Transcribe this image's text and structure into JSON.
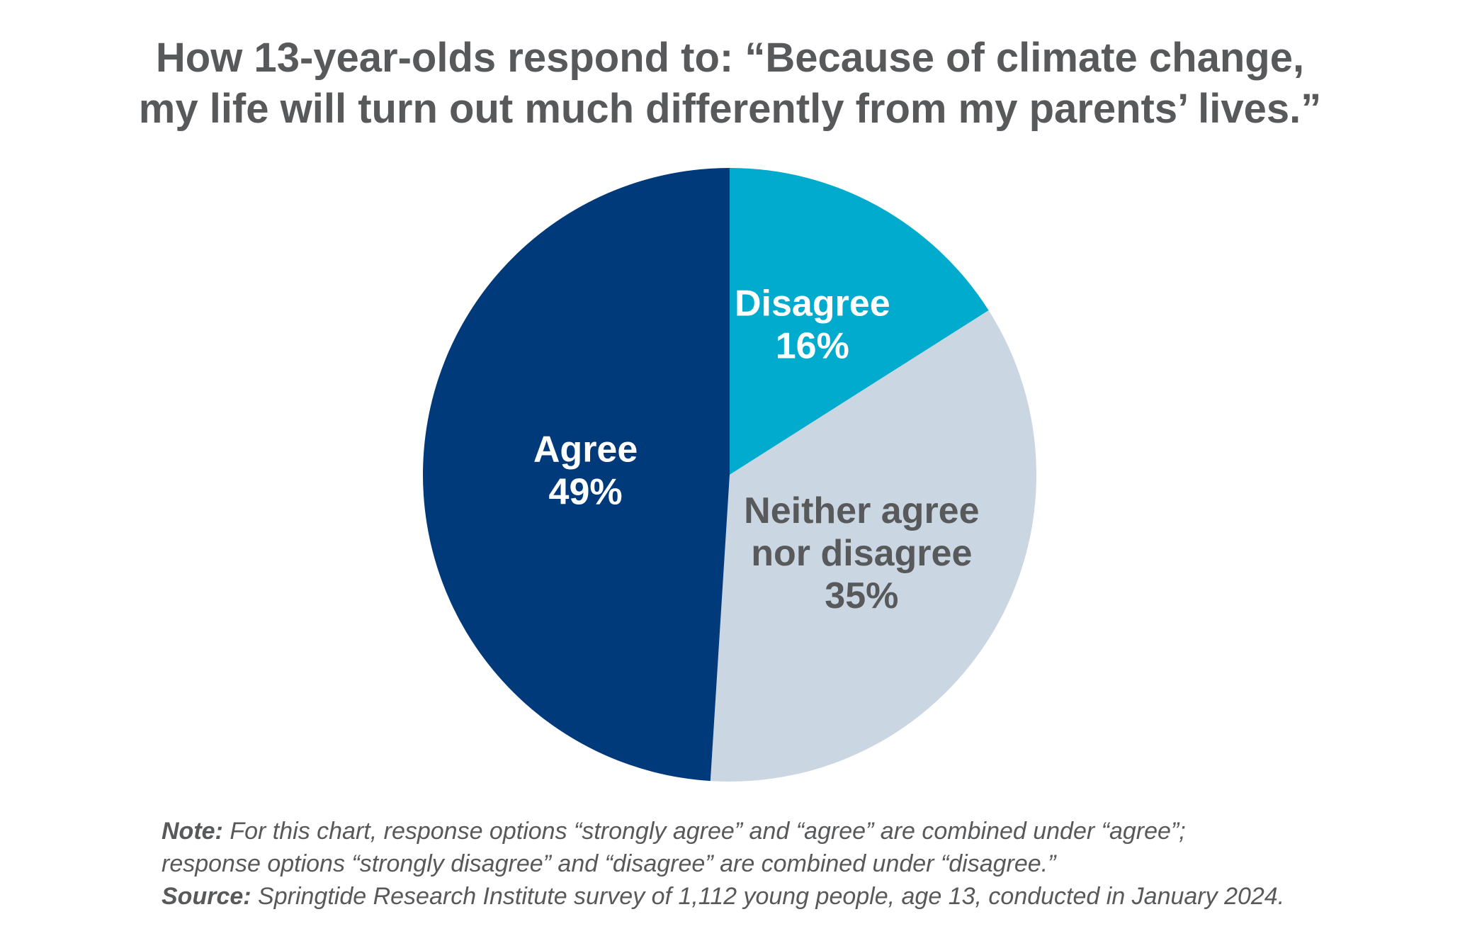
{
  "title": {
    "line1": "How 13-year-olds respond to: “Because of climate change,",
    "line2": "my life will turn out much differently from my parents’ lives.”"
  },
  "chart_data": {
    "type": "pie",
    "title": "How 13-year-olds respond to: “Because of climate change, my life will turn out much differently from my parents’ lives.”",
    "unit": "%",
    "slices": [
      {
        "label": "Disagree",
        "label_lines": [
          "Disagree"
        ],
        "value": 16,
        "display": "16%",
        "color": "#00abcd",
        "text_color": "#ffffff"
      },
      {
        "label": "Neither agree nor disagree",
        "label_lines": [
          "Neither agree",
          "nor disagree"
        ],
        "value": 35,
        "display": "35%",
        "color": "#cbd6e3",
        "text_color": "#58595b"
      },
      {
        "label": "Agree",
        "label_lines": [
          "Agree"
        ],
        "value": 49,
        "display": "49%",
        "color": "#003a7b",
        "text_color": "#ffffff"
      }
    ]
  },
  "notes": {
    "note_label": "Note:",
    "note_line1": " For this chart, response options “strongly agree” and “agree” are combined under “agree”;",
    "note_line2": "response options “strongly disagree” and “disagree” are combined under “disagree.”",
    "source_label": "Source:",
    "source_text": " Springtide Research Institute survey of 1,112 young people, age 13, conducted in January 2024."
  }
}
